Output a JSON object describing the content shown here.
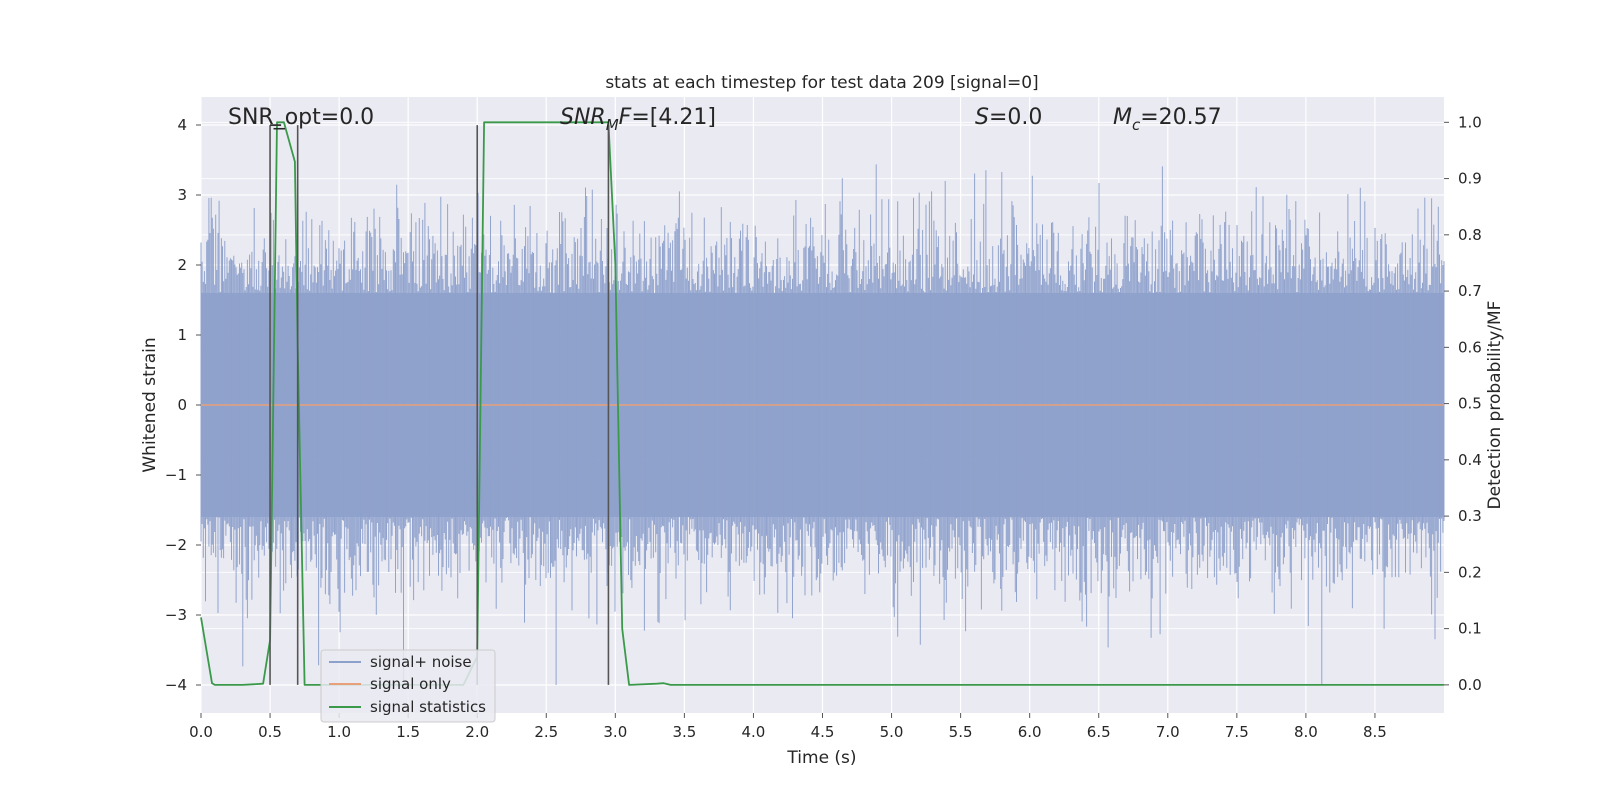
{
  "chart_data": {
    "type": "line",
    "title": "stats at each timestep for test data 209 [signal=0]",
    "xlabel": "Time (s)",
    "ylabel": "Whitened strain",
    "ylabel_right": "Detection probability/MF",
    "xlim": [
      0.0,
      9.0
    ],
    "ylim": [
      -4.4,
      4.4
    ],
    "ylim_right": [
      -0.05,
      1.045
    ],
    "x_ticks": [
      "0.0",
      "0.5",
      "1.0",
      "1.5",
      "2.0",
      "2.5",
      "3.0",
      "3.5",
      "4.0",
      "4.5",
      "5.0",
      "5.5",
      "6.0",
      "6.5",
      "7.0",
      "7.5",
      "8.0",
      "8.5"
    ],
    "y_ticks": [
      "4",
      "3",
      "2",
      "1",
      "0",
      "−1",
      "−2",
      "−3",
      "−4"
    ],
    "y_ticks_right": [
      "1.0",
      "0.9",
      "0.8",
      "0.7",
      "0.6",
      "0.5",
      "0.4",
      "0.3",
      "0.2",
      "0.1",
      "0.0"
    ],
    "grid": true,
    "legend_position": "lower-left",
    "annotations": {
      "snr_opt": "SNR_opt=0.0",
      "snr_mf_sym": "SNR",
      "snr_mf_sub": "M",
      "snr_mf_f": "F",
      "snr_mf_val": "=[4.21]",
      "s_sym": "S",
      "s_val": "=0.0",
      "mc_sym": "M",
      "mc_sub": "c",
      "mc_val": "=20.57"
    },
    "series": [
      {
        "name": "signal+ noise",
        "color": "#8da0cb",
        "axis": "left",
        "description_values": "whitened noise, amplitude within about ±4",
        "envelope_dense": 1.6
      },
      {
        "name": "signal only",
        "color": "#e8a07a",
        "axis": "left",
        "x": [
          0.0,
          9.0
        ],
        "y": [
          0.0,
          0.0
        ]
      },
      {
        "name": "signal statistics",
        "color": "#3a9a4a",
        "axis": "right",
        "x": [
          0.0,
          0.08,
          0.1,
          0.2,
          0.3,
          0.45,
          0.5,
          0.55,
          0.6,
          0.68,
          0.7,
          0.75,
          1.0,
          1.9,
          2.0,
          2.05,
          2.1,
          2.95,
          3.0,
          3.05,
          3.1,
          3.3,
          3.35,
          3.4,
          9.0
        ],
        "y": [
          0.12,
          0.003,
          0.0,
          0.0,
          0.0,
          0.002,
          0.08,
          1.0,
          1.0,
          0.93,
          0.6,
          0.0,
          0.0,
          0.0,
          0.05,
          1.0,
          1.0,
          1.0,
          0.75,
          0.1,
          0.0,
          0.002,
          0.003,
          0.0,
          0.0
        ]
      }
    ],
    "vertical_markers": {
      "color": "#555555",
      "x": [
        0.5,
        0.7,
        2.0,
        2.95
      ],
      "y_top": 0.995,
      "y_bottom": 0.0,
      "bracket": [
        0.5,
        0.58
      ]
    }
  }
}
